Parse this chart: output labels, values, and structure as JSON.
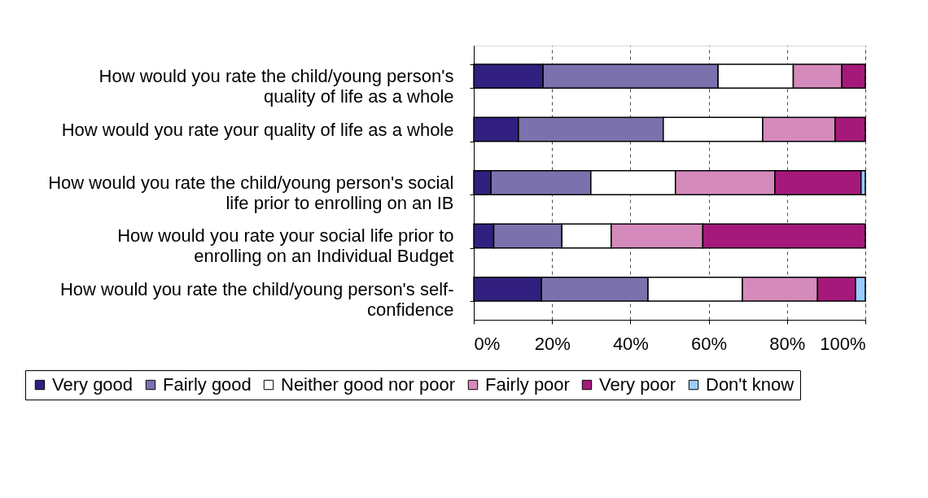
{
  "chart_data": {
    "type": "bar",
    "orientation": "horizontal",
    "stacked": true,
    "categories": [
      "How would you rate the child/young person's quality of life as a whole",
      "How would you rate your quality of life as a whole",
      "How would you rate the child/young person's social life prior to enrolling on an IB",
      "How would you rate your social life prior to enrolling on an Individual Budget",
      "How would you rate the child/young person's self-confidence"
    ],
    "series": [
      {
        "name": "Very good",
        "color": "#31207f",
        "values": [
          17.7,
          11.4,
          4.4,
          5.1,
          17.3
        ]
      },
      {
        "name": "Fairly good",
        "color": "#7b71ad",
        "values": [
          44.7,
          37.0,
          25.5,
          17.4,
          27.2
        ]
      },
      {
        "name": "Neither good nor poor",
        "color": "#ffffff",
        "values": [
          19.2,
          25.4,
          21.6,
          12.6,
          24.1
        ]
      },
      {
        "name": "Fairly poor",
        "color": "#d48abb",
        "values": [
          12.4,
          18.5,
          25.4,
          23.4,
          19.2
        ]
      },
      {
        "name": "Very poor",
        "color": "#a5197a",
        "values": [
          6.0,
          7.7,
          22.0,
          41.5,
          9.7
        ]
      },
      {
        "name": "Don't know",
        "color": "#99ccff",
        "values": [
          0,
          0,
          1.1,
          0,
          2.5
        ]
      }
    ],
    "xlim": [
      0,
      100
    ],
    "xticks": [
      {
        "value": 0,
        "label": "0%"
      },
      {
        "value": 20,
        "label": "20%"
      },
      {
        "value": 40,
        "label": "40%"
      },
      {
        "value": 60,
        "label": "60%"
      },
      {
        "value": 80,
        "label": "80%"
      },
      {
        "value": 100,
        "label": "100%"
      }
    ],
    "grid": "x",
    "legend": "bottom"
  }
}
